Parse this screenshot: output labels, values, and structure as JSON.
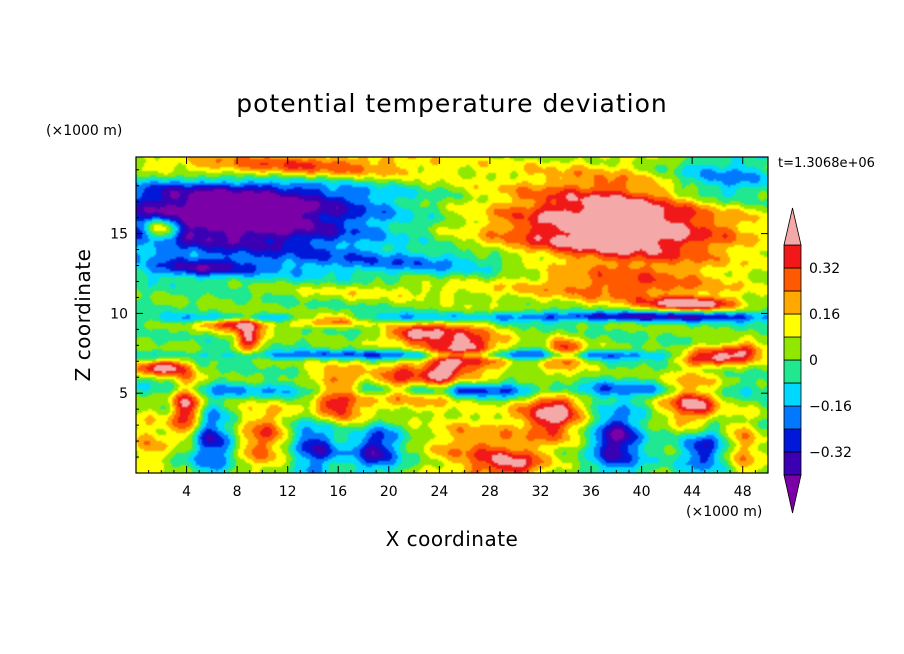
{
  "chart_data": {
    "type": "heatmap",
    "title": "potential temperature deviation",
    "xlabel": "X coordinate",
    "ylabel": "Z coordinate",
    "x_unit": "(×1000 m)",
    "y_unit": "(×1000 m)",
    "time_label": "t=1.3068e+06",
    "xlim": [
      0,
      50
    ],
    "ylim": [
      0,
      19.8
    ],
    "x_ticks": [
      4,
      8,
      12,
      16,
      20,
      24,
      28,
      32,
      36,
      40,
      44,
      48
    ],
    "y_ticks": [
      5,
      10,
      15
    ],
    "colorbar": {
      "levels": [
        -0.4,
        -0.32,
        -0.24,
        -0.16,
        -0.08,
        0,
        0.08,
        0.16,
        0.24,
        0.32,
        0.4
      ],
      "labels": [
        "-0.32",
        "-0.16",
        "0",
        "0.16",
        "0.32"
      ],
      "label_values": [
        -0.32,
        -0.16,
        0,
        0.16,
        0.32
      ],
      "colors": [
        "#7b00a8",
        "#3c00b4",
        "#0018d8",
        "#0078ff",
        "#00d8ff",
        "#20e890",
        "#90e800",
        "#ffff00",
        "#ffa800",
        "#ff5a00",
        "#f01818",
        "#f4a8a8"
      ],
      "extend": "both"
    },
    "features": [
      {
        "x": 38,
        "z": 15.5,
        "rx": 10,
        "rz": 3.2,
        "v": 0.55
      },
      {
        "x": 8,
        "z": 16.3,
        "rx": 11,
        "rz": 2.8,
        "v": -0.55
      },
      {
        "x": 11,
        "z": 19.2,
        "rx": 12,
        "rz": 1.0,
        "v": 0.45
      },
      {
        "x": 46,
        "z": 18.2,
        "rx": 5,
        "rz": 1.6,
        "v": -0.3
      },
      {
        "x": 2,
        "z": 15.3,
        "rx": 1.4,
        "rz": 0.7,
        "v": 0.45
      },
      {
        "x": 25,
        "z": 13.2,
        "rx": 12,
        "rz": 0.8,
        "v": -0.2
      },
      {
        "x": 5,
        "z": 12.8,
        "rx": 4,
        "rz": 0.5,
        "v": -0.25
      },
      {
        "x": 20,
        "z": 11.4,
        "rx": 10,
        "rz": 0.6,
        "v": 0.12
      },
      {
        "x": 40,
        "z": 11.5,
        "rx": 8,
        "rz": 1.0,
        "v": 0.18
      },
      {
        "x": 40,
        "z": 9.8,
        "rx": 14,
        "rz": 0.35,
        "v": -0.35
      },
      {
        "x": 12,
        "z": 9.7,
        "rx": 10,
        "rz": 0.3,
        "v": -0.3
      },
      {
        "x": 8,
        "z": 9.4,
        "rx": 2.5,
        "rz": 0.5,
        "v": 0.45
      },
      {
        "x": 15,
        "z": 9.6,
        "rx": 3.5,
        "rz": 0.4,
        "v": 0.45
      },
      {
        "x": 22,
        "z": 8.7,
        "rx": 2.5,
        "rz": 0.6,
        "v": 0.4
      },
      {
        "x": 44,
        "z": 10.6,
        "rx": 3.5,
        "rz": 0.4,
        "v": 0.45
      },
      {
        "x": 9,
        "z": 8.3,
        "rx": 1,
        "rz": 0.8,
        "v": 0.45
      },
      {
        "x": 26,
        "z": 7.6,
        "rx": 3,
        "rz": 1.6,
        "v": 0.5
      },
      {
        "x": 34,
        "z": 7.5,
        "rx": 1.5,
        "rz": 0.9,
        "v": 0.4
      },
      {
        "x": 45,
        "z": 7.3,
        "rx": 2,
        "rz": 0.6,
        "v": 0.4
      },
      {
        "x": 48,
        "z": 7.5,
        "rx": 2,
        "rz": 0.6,
        "v": 0.45
      },
      {
        "x": 2,
        "z": 6.6,
        "rx": 2,
        "rz": 0.5,
        "v": 0.45
      },
      {
        "x": 25,
        "z": 7.4,
        "rx": 20,
        "rz": 0.3,
        "v": -0.3
      },
      {
        "x": 24,
        "z": 5.8,
        "rx": 1.2,
        "rz": 1.6,
        "v": 0.3
      },
      {
        "x": 4,
        "z": 4.0,
        "rx": 1.2,
        "rz": 2.2,
        "v": 0.45
      },
      {
        "x": 10,
        "z": 2.2,
        "rx": 2.6,
        "rz": 2.2,
        "v": 0.3
      },
      {
        "x": 14,
        "z": 1.8,
        "rx": 2.0,
        "rz": 1.8,
        "v": -0.35
      },
      {
        "x": 16,
        "z": 4.8,
        "rx": 2.5,
        "rz": 1.8,
        "v": 0.45
      },
      {
        "x": 21,
        "z": 5.5,
        "rx": 2.0,
        "rz": 1.4,
        "v": 0.4
      },
      {
        "x": 27,
        "z": 1.5,
        "rx": 4,
        "rz": 2.3,
        "v": 0.25
      },
      {
        "x": 33,
        "z": 3.8,
        "rx": 2.5,
        "rz": 1.8,
        "v": 0.45
      },
      {
        "x": 38,
        "z": 2.0,
        "rx": 2,
        "rz": 2.0,
        "v": -0.4
      },
      {
        "x": 44,
        "z": 4.5,
        "rx": 2.2,
        "rz": 1.6,
        "v": 0.45
      },
      {
        "x": 45,
        "z": 1.5,
        "rx": 2.0,
        "rz": 1.5,
        "v": -0.3
      },
      {
        "x": 6,
        "z": 2.0,
        "rx": 2.0,
        "rz": 2.0,
        "v": -0.35
      },
      {
        "x": 1,
        "z": 2.0,
        "rx": 1.5,
        "rz": 2.0,
        "v": 0.2
      },
      {
        "x": 19,
        "z": 1.5,
        "rx": 2.0,
        "rz": 1.5,
        "v": -0.35
      },
      {
        "x": 30,
        "z": 0.5,
        "rx": 2.5,
        "rz": 1.0,
        "v": 0.3
      },
      {
        "x": 48,
        "z": 1.5,
        "rx": 1.5,
        "rz": 2.0,
        "v": 0.25
      },
      {
        "x": 25,
        "z": 5.2,
        "rx": 22,
        "rz": 0.5,
        "v": -0.3
      }
    ]
  }
}
